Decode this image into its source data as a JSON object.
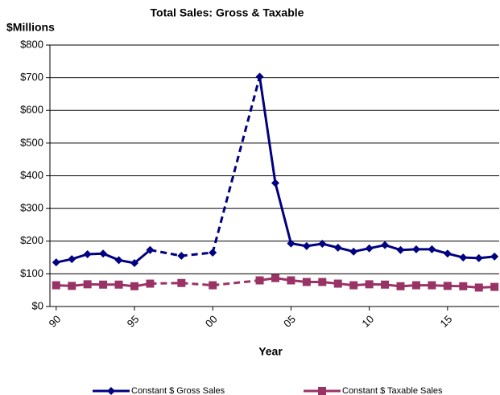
{
  "chart_data": {
    "type": "line",
    "title": "Total Sales: Gross & Taxable",
    "y_label": "$Millions",
    "x_label": "Year",
    "x": [
      1990,
      1991,
      1992,
      1993,
      1994,
      1995,
      1996,
      1998,
      2000,
      2003,
      2004,
      2005,
      2006,
      2007,
      2008,
      2009,
      2010,
      2011,
      2012,
      2013,
      2014,
      2015,
      2016,
      2017,
      2018
    ],
    "series": [
      {
        "name": "Constant $ Gross Sales",
        "color": "#000080",
        "marker": "diamond",
        "values": [
          135,
          145,
          160,
          162,
          142,
          133,
          173,
          155,
          165,
          703,
          378,
          193,
          185,
          192,
          180,
          168,
          178,
          188,
          173,
          175,
          175,
          162,
          150,
          148,
          153
        ]
      },
      {
        "name": "Constant $ Taxable Sales",
        "color": "#993366",
        "marker": "square",
        "values": [
          65,
          63,
          68,
          67,
          67,
          62,
          70,
          72,
          65,
          80,
          87,
          80,
          75,
          75,
          70,
          65,
          68,
          67,
          62,
          65,
          65,
          63,
          62,
          58,
          60
        ]
      }
    ],
    "xlim": [
      1989.6,
      2018.3
    ],
    "xticks": [
      {
        "value": 1990,
        "label": "90"
      },
      {
        "value": 1995,
        "label": "95"
      },
      {
        "value": 2000,
        "label": "00"
      },
      {
        "value": 2005,
        "label": "05"
      },
      {
        "value": 2010,
        "label": "10"
      },
      {
        "value": 2015,
        "label": "15"
      }
    ],
    "ylim": [
      0,
      800
    ],
    "yticks": [
      {
        "value": 0,
        "label": "$0"
      },
      {
        "value": 100,
        "label": "$100"
      },
      {
        "value": 200,
        "label": "$200"
      },
      {
        "value": 300,
        "label": "$300"
      },
      {
        "value": 400,
        "label": "$400"
      },
      {
        "value": 500,
        "label": "$500"
      },
      {
        "value": 600,
        "label": "$600"
      },
      {
        "value": 700,
        "label": "$700"
      },
      {
        "value": 800,
        "label": "$800"
      }
    ],
    "grid": true
  }
}
